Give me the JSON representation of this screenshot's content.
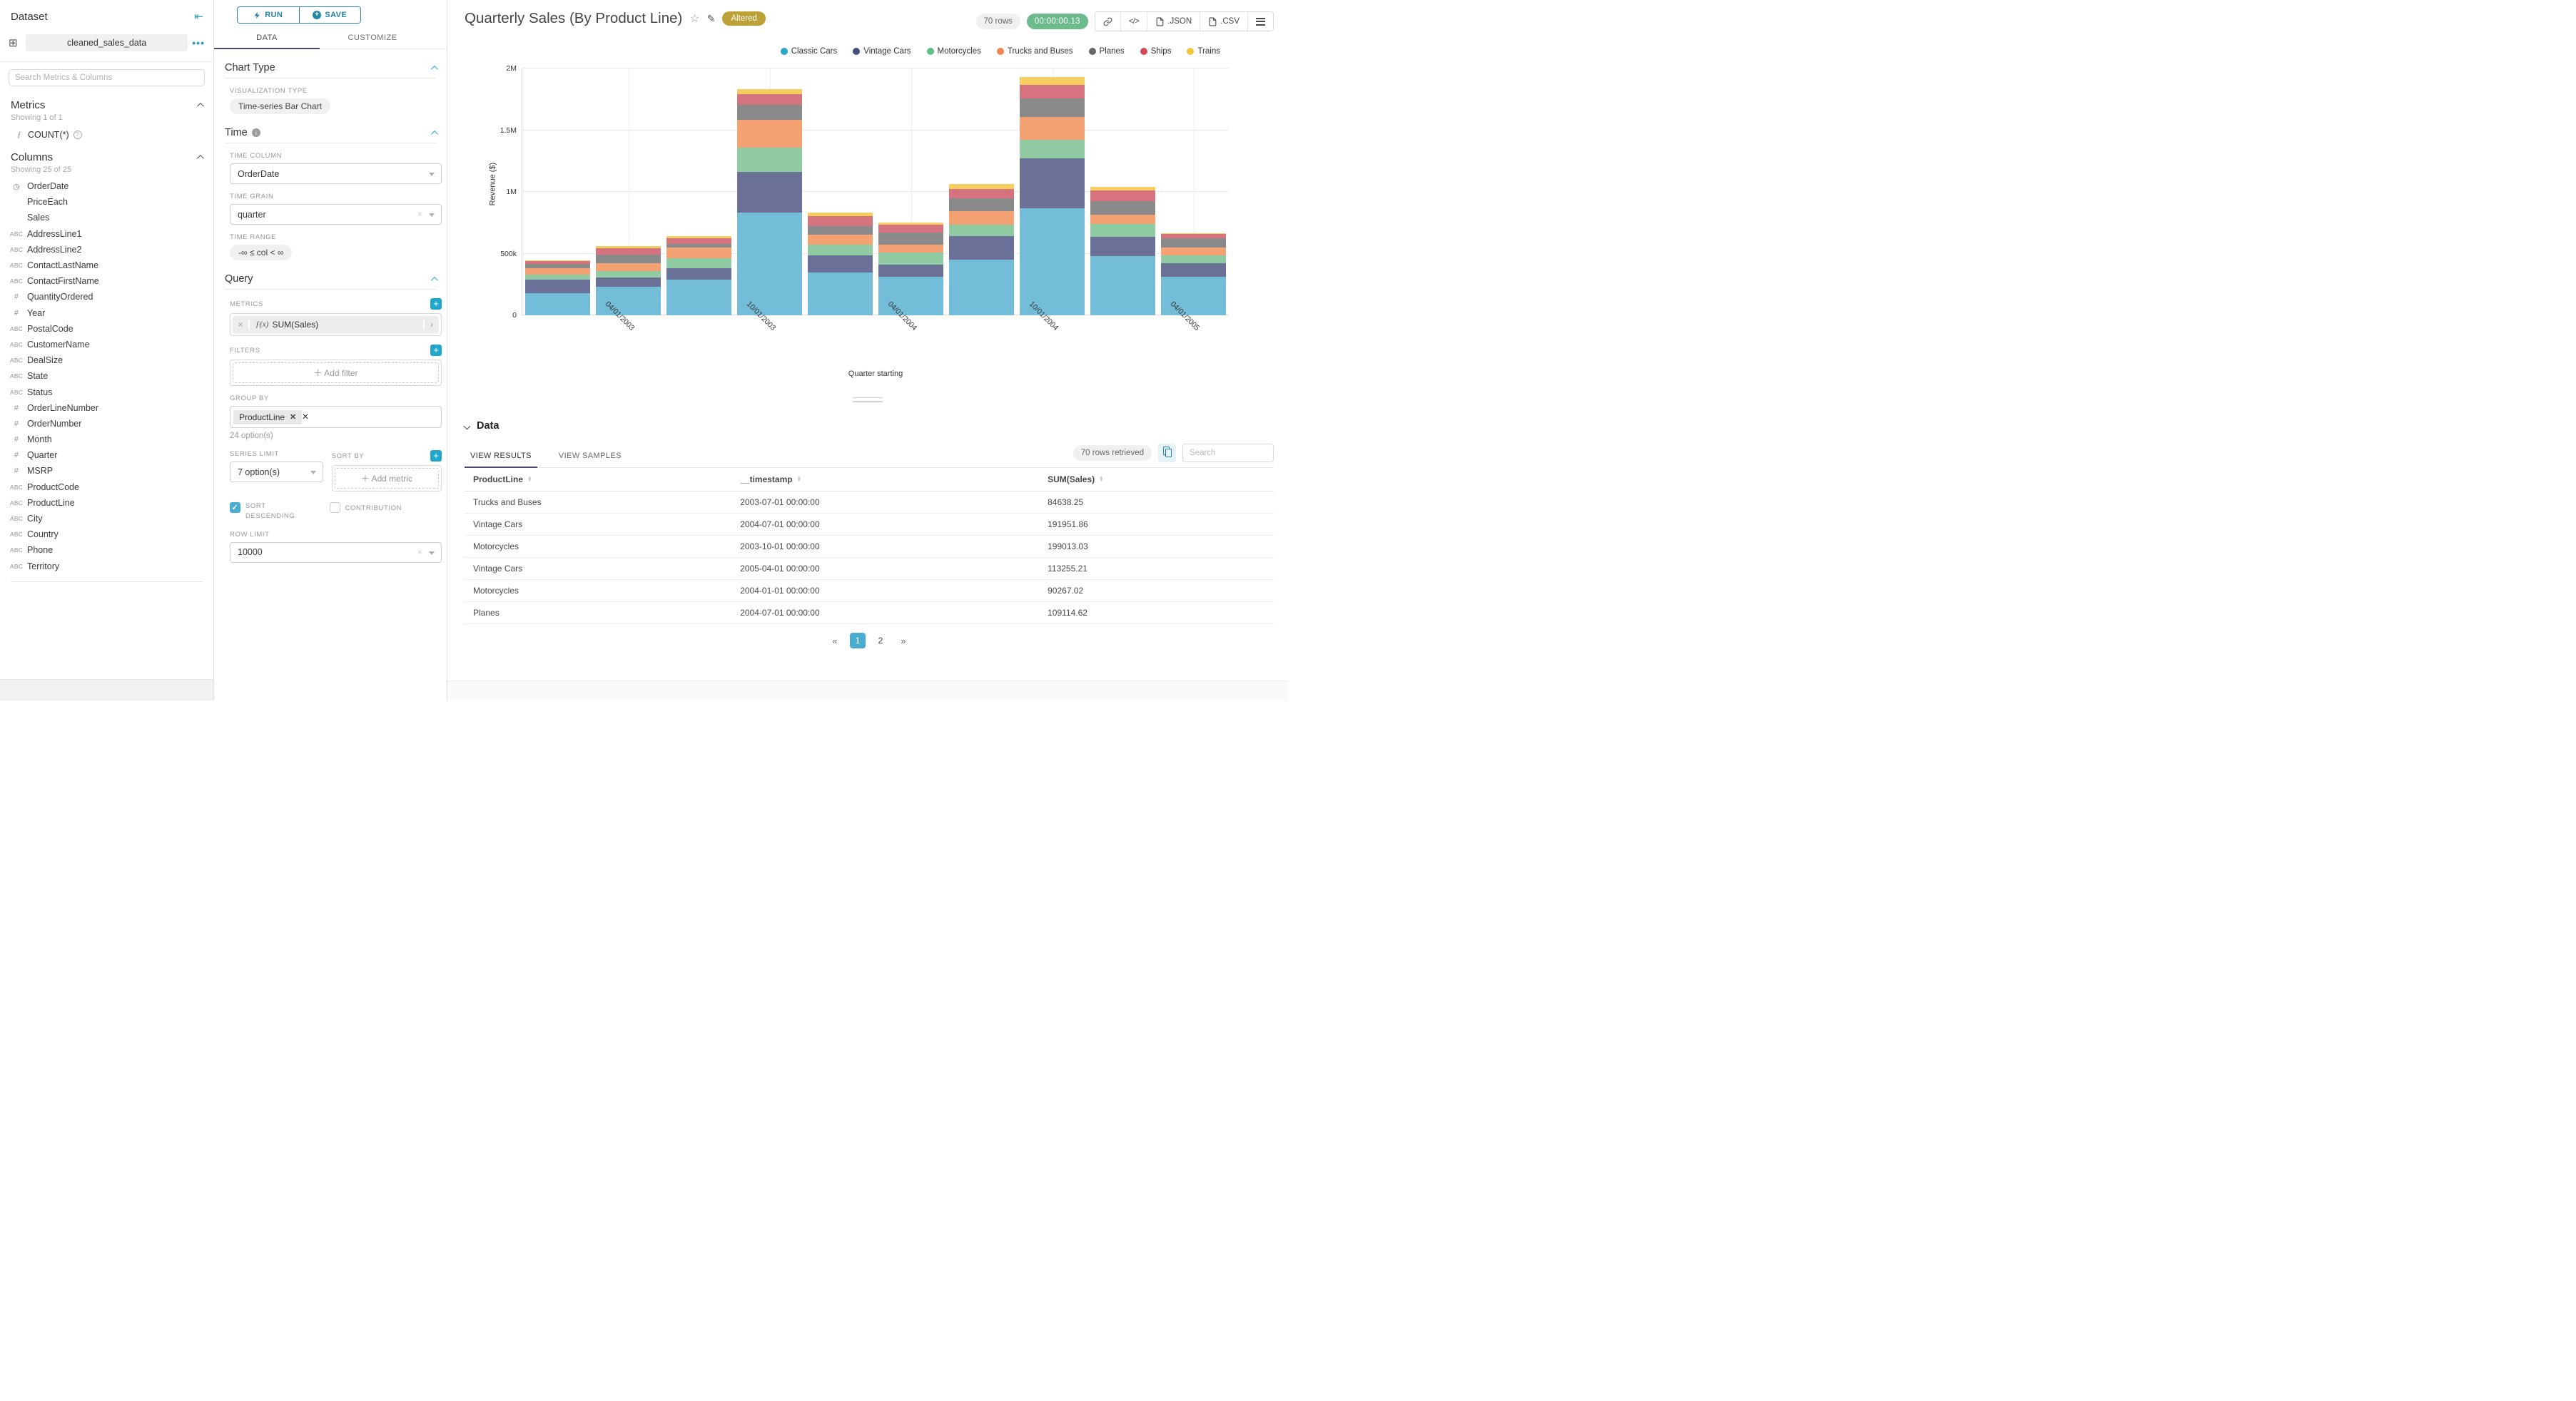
{
  "dataset_panel": {
    "title": "Dataset",
    "dataset_name": "cleaned_sales_data",
    "search_placeholder": "Search Metrics & Columns",
    "metrics": {
      "heading": "Metrics",
      "showing": "Showing 1 of 1",
      "metric_fx": "ƒ",
      "items": [
        {
          "name": "COUNT(*)"
        }
      ]
    },
    "columns": {
      "heading": "Columns",
      "showing": "Showing 25 of 25",
      "items": [
        {
          "name": "OrderDate",
          "type": "time"
        },
        {
          "name": "PriceEach",
          "type": "none"
        },
        {
          "name": "Sales",
          "type": "none"
        },
        {
          "name": "AddressLine1",
          "type": "abc"
        },
        {
          "name": "AddressLine2",
          "type": "abc"
        },
        {
          "name": "ContactLastName",
          "type": "abc"
        },
        {
          "name": "ContactFirstName",
          "type": "abc"
        },
        {
          "name": "QuantityOrdered",
          "type": "num"
        },
        {
          "name": "Year",
          "type": "num"
        },
        {
          "name": "PostalCode",
          "type": "abc"
        },
        {
          "name": "CustomerName",
          "type": "abc"
        },
        {
          "name": "DealSize",
          "type": "abc"
        },
        {
          "name": "State",
          "type": "abc"
        },
        {
          "name": "Status",
          "type": "abc"
        },
        {
          "name": "OrderLineNumber",
          "type": "num"
        },
        {
          "name": "OrderNumber",
          "type": "num"
        },
        {
          "name": "Month",
          "type": "num"
        },
        {
          "name": "Quarter",
          "type": "num"
        },
        {
          "name": "MSRP",
          "type": "num"
        },
        {
          "name": "ProductCode",
          "type": "abc"
        },
        {
          "name": "ProductLine",
          "type": "abc"
        },
        {
          "name": "City",
          "type": "abc"
        },
        {
          "name": "Country",
          "type": "abc"
        },
        {
          "name": "Phone",
          "type": "abc"
        },
        {
          "name": "Territory",
          "type": "abc"
        }
      ]
    }
  },
  "control_panel": {
    "run_label": "RUN",
    "save_label": "SAVE",
    "tabs": {
      "data": "DATA",
      "customize": "CUSTOMIZE"
    },
    "chart_type": {
      "heading": "Chart Type",
      "viz_type_label": "VISUALIZATION TYPE",
      "viz_type_value": "Time-series Bar Chart"
    },
    "time": {
      "heading": "Time",
      "time_column_label": "TIME COLUMN",
      "time_column_value": "OrderDate",
      "time_grain_label": "TIME GRAIN",
      "time_grain_value": "quarter",
      "time_range_label": "TIME RANGE",
      "time_range_value": "-∞ ≤ col < ∞"
    },
    "query": {
      "heading": "Query",
      "metrics_label": "METRICS",
      "metric_fx": "ƒ(x)",
      "metric_value": "SUM(Sales)",
      "filters_label": "FILTERS",
      "add_filter_label": "Add filter",
      "group_by_label": "GROUP BY",
      "group_by_value": "ProductLine",
      "group_by_options_note": "24 option(s)",
      "series_limit_label": "SERIES LIMIT",
      "series_limit_value": "7 option(s)",
      "sort_by_label": "SORT BY",
      "add_metric_label": "Add metric",
      "sort_descending_label": "SORT DESCENDING",
      "contribution_label": "CONTRIBUTION",
      "row_limit_label": "ROW LIMIT",
      "row_limit_value": "10000"
    }
  },
  "chart_header": {
    "title": "Quarterly Sales (By Product Line)",
    "altered_badge": "Altered",
    "rows_badge": "70 rows",
    "timer_badge": "00:00:00.13",
    "export_json_label": ".JSON",
    "export_csv_label": ".CSV"
  },
  "chart_data": {
    "type": "bar",
    "stacked": true,
    "title": "Quarterly Sales (By Product Line)",
    "xlabel": "Quarter starting",
    "ylabel": "Revenue ($)",
    "ylim": [
      0,
      2000000
    ],
    "y_ticks": [
      {
        "label": "0",
        "value": 0
      },
      {
        "label": "500k",
        "value": 500000
      },
      {
        "label": "1M",
        "value": 1000000
      },
      {
        "label": "1.5M",
        "value": 1500000
      },
      {
        "label": "2M",
        "value": 2000000
      }
    ],
    "x": [
      "2003-01-01",
      "2003-04-01",
      "2003-07-01",
      "2003-10-01",
      "2004-01-01",
      "2004-04-01",
      "2004-07-01",
      "2004-10-01",
      "2005-01-01",
      "2005-04-01"
    ],
    "x_tick_labels": [
      {
        "label": "04/01/2003",
        "slot": 1
      },
      {
        "label": "10/01/2003",
        "slot": 3
      },
      {
        "label": "04/01/2004",
        "slot": 5
      },
      {
        "label": "10/01/2004",
        "slot": 7
      },
      {
        "label": "04/01/2005",
        "slot": 9
      }
    ],
    "legend_position": "top-right",
    "grid": true,
    "series": [
      {
        "name": "Classic Cars",
        "legend_color": "#2BA8C9",
        "bar_color": "#74BDD8",
        "values": [
          180000,
          230000,
          290000,
          830000,
          345000,
          310000,
          450000,
          870000,
          480000,
          310000
        ]
      },
      {
        "name": "Vintage Cars",
        "legend_color": "#454E7C",
        "bar_color": "#6A7096",
        "values": [
          110000,
          78000,
          90000,
          330000,
          140000,
          100000,
          191951.86,
          400000,
          155000,
          113255.21
        ]
      },
      {
        "name": "Motorcycles",
        "legend_color": "#5FBE8C",
        "bar_color": "#90CBA4",
        "values": [
          40000,
          48000,
          82000,
          199013.03,
          90267.02,
          100000,
          95000,
          155000,
          105000,
          60000
        ]
      },
      {
        "name": "Trucks and Buses",
        "legend_color": "#F5834D",
        "bar_color": "#F4A173",
        "values": [
          50000,
          65000,
          84638.25,
          225000,
          78000,
          65000,
          105000,
          185000,
          75000,
          65000
        ]
      },
      {
        "name": "Planes",
        "legend_color": "#666666",
        "bar_color": "#8A8A8A",
        "values": [
          35000,
          70000,
          30000,
          120000,
          70000,
          95000,
          109114.62,
          150000,
          110000,
          75000
        ]
      },
      {
        "name": "Ships",
        "legend_color": "#D34A5A",
        "bar_color": "#D5737F",
        "values": [
          25000,
          55000,
          48000,
          90000,
          82000,
          65000,
          75000,
          105000,
          85000,
          35000
        ]
      },
      {
        "name": "Trains",
        "legend_color": "#F4C43D",
        "bar_color": "#F6CE60",
        "values": [
          8000,
          15000,
          18000,
          40000,
          28000,
          15000,
          35000,
          65000,
          30000,
          7000
        ]
      }
    ]
  },
  "data_panel": {
    "heading": "Data",
    "tabs": {
      "results": "VIEW RESULTS",
      "samples": "VIEW SAMPLES"
    },
    "rows_retrieved": "70 rows retrieved",
    "search_placeholder": "Search",
    "table": {
      "columns": [
        "ProductLine",
        "__timestamp",
        "SUM(Sales)"
      ],
      "rows": [
        [
          "Trucks and Buses",
          "2003-07-01 00:00:00",
          "84638.25"
        ],
        [
          "Vintage Cars",
          "2004-07-01 00:00:00",
          "191951.86"
        ],
        [
          "Motorcycles",
          "2003-10-01 00:00:00",
          "199013.03"
        ],
        [
          "Vintage Cars",
          "2005-04-01 00:00:00",
          "113255.21"
        ],
        [
          "Motorcycles",
          "2004-01-01 00:00:00",
          "90267.02"
        ],
        [
          "Planes",
          "2004-07-01 00:00:00",
          "109114.62"
        ]
      ]
    },
    "pagination": {
      "prev": "«",
      "pages": [
        "1",
        "2"
      ],
      "active_page": "1",
      "next": "»"
    }
  },
  "colors": {
    "primary_teal": "#20A7C9",
    "active_blue": "#4BACD2",
    "tab_underline": "#484B6A",
    "altered_gold": "#BCA136",
    "timer_green": "#6BBB8C"
  }
}
